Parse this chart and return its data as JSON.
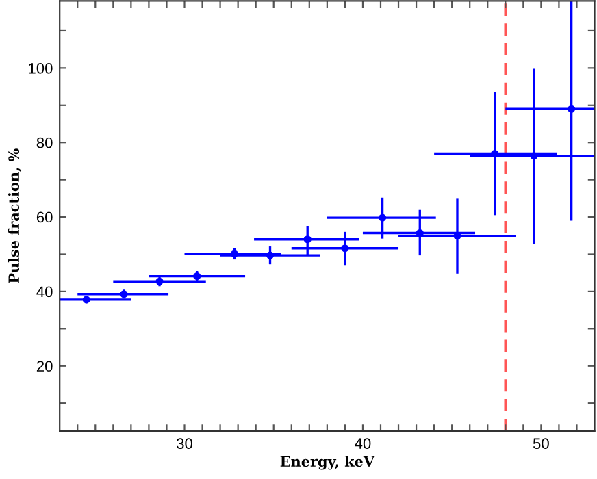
{
  "chart_data": {
    "type": "scatter",
    "xlabel": "Energy, keV",
    "ylabel": "Pulse fraction, %",
    "x": [
      24.5,
      26.6,
      28.6,
      30.7,
      32.8,
      34.8,
      36.9,
      39.0,
      41.1,
      43.2,
      45.3,
      47.4,
      49.6,
      51.7
    ],
    "series": [
      {
        "color": "#0000ff",
        "values": [
          37.8,
          39.3,
          42.7,
          44.1,
          50.1,
          49.7,
          54.0,
          51.6,
          59.8,
          55.7,
          54.9,
          77.0,
          76.4,
          89.0
        ],
        "errors": [
          [
            36.8,
            38.8
          ],
          [
            38.1,
            40.5
          ],
          [
            41.4,
            44.0
          ],
          [
            42.7,
            45.5
          ],
          [
            48.6,
            51.6
          ],
          [
            47.3,
            52.1
          ],
          [
            49.8,
            57.5
          ],
          [
            47.1,
            56.0
          ],
          [
            54.2,
            65.2
          ],
          [
            49.7,
            61.9
          ],
          [
            44.8,
            64.9
          ],
          [
            60.5,
            93.5
          ],
          [
            52.7,
            99.8
          ],
          [
            59.0,
            118
          ]
        ],
        "xerrors": [
          [
            23.0,
            27.0
          ],
          [
            24.0,
            29.1
          ],
          [
            26.0,
            31.2
          ],
          [
            28.0,
            33.4
          ],
          [
            30.0,
            35.4
          ],
          [
            32.0,
            37.6
          ],
          [
            33.9,
            39.8
          ],
          [
            36.0,
            42.0
          ],
          [
            38.0,
            44.1
          ],
          [
            40.0,
            46.3
          ],
          [
            42.0,
            48.6
          ],
          [
            44.0,
            50.9
          ],
          [
            46.0,
            53.0
          ],
          [
            48.0,
            53.0
          ]
        ]
      }
    ],
    "marker": "circle",
    "grid": false,
    "legend": false,
    "xlim": [
      23,
      53
    ],
    "ylim": [
      2.5,
      118
    ],
    "xticks": [
      {
        "value": 24,
        "label": null
      },
      {
        "value": 25,
        "label": null
      },
      {
        "value": 26,
        "label": null
      },
      {
        "value": 27,
        "label": null
      },
      {
        "value": 28,
        "label": null
      },
      {
        "value": 29,
        "label": null
      },
      30,
      {
        "value": 31,
        "label": null
      },
      {
        "value": 32,
        "label": null
      },
      {
        "value": 33,
        "label": null
      },
      {
        "value": 34,
        "label": null
      },
      {
        "value": 35,
        "label": null
      },
      {
        "value": 36,
        "label": null
      },
      {
        "value": 37,
        "label": null
      },
      {
        "value": 38,
        "label": null
      },
      {
        "value": 39,
        "label": null
      },
      40,
      {
        "value": 41,
        "label": null
      },
      {
        "value": 42,
        "label": null
      },
      {
        "value": 43,
        "label": null
      },
      {
        "value": 44,
        "label": null
      },
      {
        "value": 45,
        "label": null
      },
      {
        "value": 46,
        "label": null
      },
      {
        "value": 47,
        "label": null
      },
      {
        "value": 48,
        "label": null
      },
      {
        "value": 49,
        "label": null
      },
      50,
      {
        "value": 51,
        "label": null
      },
      {
        "value": 52,
        "label": null
      }
    ],
    "yticks": [
      {
        "value": 10,
        "label": null
      },
      20,
      {
        "value": 30,
        "label": null
      },
      40,
      {
        "value": 50,
        "label": null
      },
      60,
      {
        "value": 70,
        "label": null
      },
      80,
      {
        "value": 90,
        "label": null
      },
      100,
      {
        "value": 110,
        "label": null
      }
    ],
    "ref_lines": [
      {
        "axis": "x",
        "value": 48,
        "color": "#ff5555",
        "line_style": "dashed"
      }
    ]
  }
}
